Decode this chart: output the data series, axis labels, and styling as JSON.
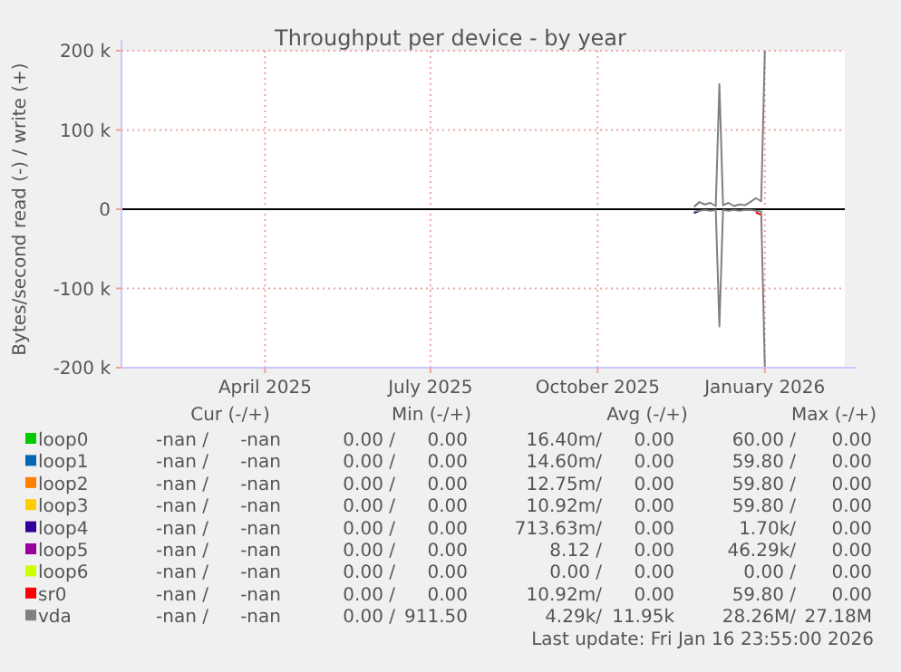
{
  "chart_data": {
    "type": "line",
    "title": "Throughput per device - by year",
    "ylabel": "Bytes/second read (-) / write (+)",
    "x": [
      "2025-11-23",
      "2025-11-26",
      "2025-11-29",
      "2025-12-02",
      "2025-12-05",
      "2025-12-07",
      "2025-12-09",
      "2025-12-12",
      "2025-12-15",
      "2025-12-18",
      "2025-12-21",
      "2025-12-24",
      "2025-12-27",
      "2025-12-30",
      "2026-01-01"
    ],
    "xlim": [
      "2025-01-12",
      "2026-02-14"
    ],
    "xticks": [
      {
        "value": "2025-04-01",
        "label": "April 2025"
      },
      {
        "value": "2025-07-01",
        "label": "July 2025"
      },
      {
        "value": "2025-10-01",
        "label": "October 2025"
      },
      {
        "value": "2026-01-01",
        "label": "January 2026"
      }
    ],
    "ylim": [
      -200000,
      200000
    ],
    "yticks": [
      {
        "value": -200000,
        "label": "-200 k"
      },
      {
        "value": -100000,
        "label": "-100 k"
      },
      {
        "value": 0,
        "label": "0"
      },
      {
        "value": 100000,
        "label": "100 k"
      },
      {
        "value": 200000,
        "label": "200 k"
      }
    ],
    "grid": true,
    "legend": "bottom",
    "marker": "none",
    "line_style": "solid",
    "series": [
      {
        "name": "loop0",
        "color": "#00cc00",
        "values": [
          null,
          null,
          null,
          null,
          null,
          null,
          null,
          null,
          null,
          null,
          null,
          null,
          null,
          null,
          null
        ]
      },
      {
        "name": "loop1",
        "color": "#0066b3",
        "values": [
          null,
          null,
          null,
          null,
          null,
          null,
          null,
          null,
          null,
          null,
          null,
          null,
          null,
          null,
          null
        ]
      },
      {
        "name": "loop2",
        "color": "#ff8000",
        "values": [
          null,
          null,
          null,
          null,
          null,
          null,
          null,
          null,
          null,
          null,
          null,
          null,
          null,
          null,
          null
        ]
      },
      {
        "name": "loop3",
        "color": "#ffcc00",
        "values": [
          null,
          null,
          null,
          null,
          null,
          null,
          null,
          null,
          null,
          null,
          null,
          null,
          null,
          null,
          null
        ]
      },
      {
        "name": "loop4",
        "color": "#330099",
        "values": [
          -5000,
          -2000,
          null,
          null,
          null,
          null,
          null,
          null,
          null,
          null,
          null,
          null,
          null,
          null,
          null
        ]
      },
      {
        "name": "loop5",
        "color": "#990099",
        "values": [
          null,
          null,
          null,
          null,
          null,
          null,
          null,
          null,
          null,
          null,
          null,
          null,
          null,
          null,
          null
        ]
      },
      {
        "name": "loop6",
        "color": "#ccff00",
        "values": [
          null,
          null,
          null,
          null,
          null,
          null,
          null,
          null,
          null,
          null,
          null,
          null,
          null,
          null,
          null
        ]
      },
      {
        "name": "sr0",
        "color": "#ff0000",
        "values": [
          null,
          null,
          null,
          null,
          null,
          null,
          null,
          null,
          null,
          null,
          null,
          null,
          -4000,
          -7000,
          null
        ]
      },
      {
        "name": "vda",
        "color": "#808080",
        "values": [
          3000,
          9000,
          6000,
          8000,
          4000,
          158000,
          5000,
          8000,
          4000,
          6000,
          5000,
          9000,
          14000,
          10000,
          200000
        ]
      },
      {
        "color": "#808080",
        "values": [
          -3000,
          -2000,
          -1000,
          -2000,
          -1000,
          -148000,
          -1000,
          -2000,
          -1000,
          -2000,
          -1000,
          -1000,
          -2000,
          -3000,
          -200000
        ]
      }
    ],
    "annotations": [
      "Cur (-/+)",
      "Min (-/+)",
      "Avg (-/+)",
      "Max (-/+)",
      "-nan /",
      "-nan",
      "0.00 /",
      "0.00",
      "16.40m/",
      "0.00",
      "60.00 /",
      "0.00",
      "-nan /",
      "-nan",
      "0.00 /",
      "0.00",
      "14.60m/",
      "0.00",
      "59.80 /",
      "0.00",
      "-nan /",
      "-nan",
      "0.00 /",
      "0.00",
      "12.75m/",
      "0.00",
      "59.80 /",
      "0.00",
      "-nan /",
      "-nan",
      "0.00 /",
      "0.00",
      "10.92m/",
      "0.00",
      "59.80 /",
      "0.00",
      "-nan /",
      "-nan",
      "0.00 /",
      "0.00",
      "713.63m/",
      "0.00",
      "1.70k/",
      "0.00",
      "-nan /",
      "-nan",
      "0.00 /",
      "0.00",
      "8.12 /",
      "0.00",
      "46.29k/",
      "0.00",
      "-nan /",
      "-nan",
      "0.00 /",
      "0.00",
      "0.00 /",
      "0.00",
      "0.00 /",
      "0.00",
      "-nan /",
      "-nan",
      "0.00 /",
      "0.00",
      "10.92m/",
      "0.00",
      "59.80 /",
      "0.00",
      "-nan /",
      "-nan",
      "0.00 /",
      "911.50",
      "4.29k/",
      "11.95k",
      "28.26M/",
      "27.18M",
      "Last update: Fri Jan 16 23:55:00 2026"
    ]
  }
}
